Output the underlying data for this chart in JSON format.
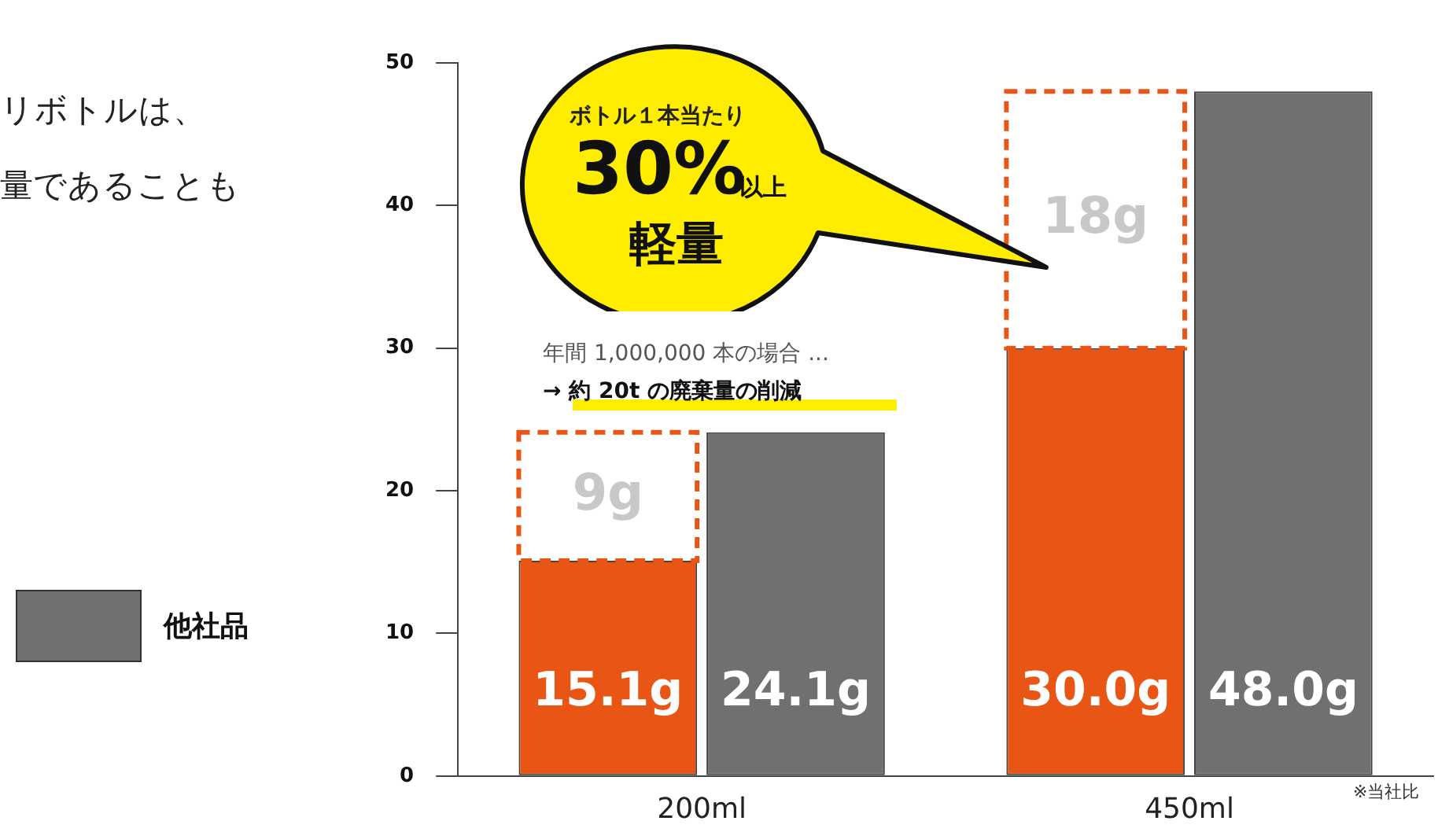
{
  "chart_data": {
    "type": "bar",
    "categories": [
      "200ml",
      "450ml"
    ],
    "series": [
      {
        "color": "#e85514",
        "values": [
          15.1,
          30.0
        ],
        "value_labels": [
          "15.1g",
          "30.0g"
        ]
      },
      {
        "color": "#e85514",
        "base": [
          15.1,
          30.0
        ],
        "values": [
          9,
          18
        ],
        "value_labels": [
          "9g",
          "18g"
        ]
      },
      {
        "name": "他社品",
        "color": "#707070",
        "values": [
          24.1,
          48.0
        ],
        "value_labels": [
          "24.1g",
          "48.0g"
        ]
      }
    ],
    "ylim": [
      0,
      50
    ],
    "yticks": [
      0,
      10,
      20,
      30,
      40,
      50
    ],
    "grid": false,
    "legend": "left",
    "annotations": [
      "リボトルは、",
      "量であることも",
      "ボトル１本当たり",
      "30%",
      "以上",
      "軽量",
      "年間 1,000,000 本の場合 ...",
      "→ 約 20t の廃棄量の削減",
      "※当社比"
    ]
  }
}
